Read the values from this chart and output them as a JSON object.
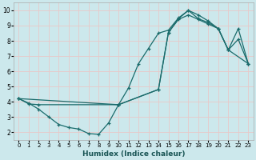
{
  "xlabel": "Humidex (Indice chaleur)",
  "bg_color": "#cce8ec",
  "grid_color": "#ffffff",
  "line_color": "#1a6b6b",
  "xlim": [
    -0.5,
    23.5
  ],
  "ylim": [
    1.5,
    10.5
  ],
  "xticks": [
    0,
    1,
    2,
    3,
    4,
    5,
    6,
    7,
    8,
    9,
    10,
    11,
    12,
    13,
    14,
    15,
    16,
    17,
    18,
    19,
    20,
    21,
    22,
    23
  ],
  "yticks": [
    2,
    3,
    4,
    5,
    6,
    7,
    8,
    9,
    10
  ],
  "curve1_x": [
    0,
    1,
    2,
    3,
    4,
    5,
    6,
    7,
    8,
    9,
    10,
    11,
    12,
    13,
    14,
    15,
    16,
    17,
    18,
    19,
    20,
    21,
    22,
    23
  ],
  "curve1_y": [
    4.2,
    3.9,
    3.5,
    3.0,
    2.5,
    2.3,
    2.2,
    1.9,
    1.85,
    2.6,
    3.8,
    4.9,
    6.5,
    7.5,
    8.5,
    8.7,
    9.5,
    10.0,
    9.7,
    9.3,
    8.8,
    7.4,
    8.1,
    6.5
  ],
  "curve2_x": [
    0,
    1,
    2,
    10,
    14,
    15,
    16,
    17,
    18,
    19,
    20,
    21,
    23
  ],
  "curve2_y": [
    4.2,
    3.85,
    3.8,
    3.8,
    4.8,
    8.55,
    9.45,
    10.0,
    9.45,
    9.2,
    8.8,
    7.4,
    6.5
  ],
  "curve3_x": [
    0,
    10,
    14,
    15,
    16,
    17,
    18,
    19,
    20,
    21,
    22,
    23
  ],
  "curve3_y": [
    4.2,
    3.8,
    4.8,
    8.55,
    9.4,
    9.7,
    9.4,
    9.1,
    8.8,
    7.4,
    8.8,
    6.5
  ]
}
